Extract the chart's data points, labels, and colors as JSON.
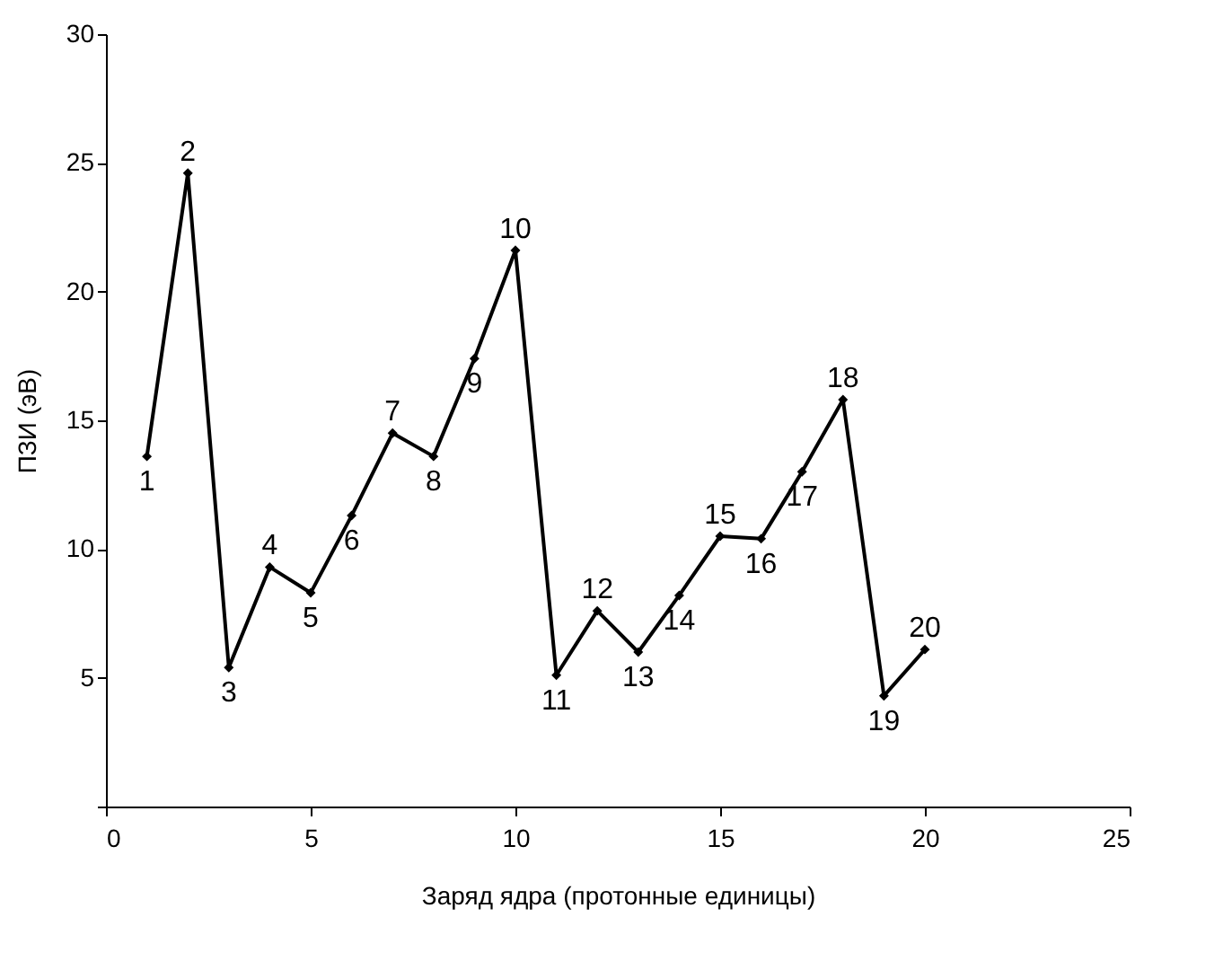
{
  "chart_data": {
    "type": "line",
    "xlabel": "Заряд ядра (протонные единицы)",
    "ylabel": "ПЗИ (эВ)",
    "x": [
      1,
      2,
      3,
      4,
      5,
      6,
      7,
      8,
      9,
      10,
      11,
      12,
      13,
      14,
      15,
      16,
      17,
      18,
      19,
      20
    ],
    "series": [
      {
        "color": "#000000",
        "values": [
          13.6,
          24.6,
          5.4,
          9.3,
          8.3,
          11.3,
          14.5,
          13.6,
          17.4,
          21.6,
          5.1,
          7.6,
          6.0,
          8.2,
          10.5,
          10.4,
          13.0,
          15.8,
          4.3,
          6.1
        ]
      }
    ],
    "xlim": [
      0,
      25
    ],
    "xticks": [
      0,
      5,
      10,
      15,
      20,
      25
    ],
    "ylim": [
      0,
      30
    ],
    "yticks": [
      {
        "value": 0,
        "label": null
      },
      5,
      10,
      15,
      20,
      25,
      30
    ],
    "grid": false,
    "marker": "diamond",
    "line_style": "solid",
    "annotations": [
      {
        "text": "1",
        "x": 1,
        "y": 13.6
      },
      {
        "text": "2",
        "x": 2,
        "y": 24.6
      },
      {
        "text": "3",
        "x": 3,
        "y": 5.4
      },
      {
        "text": "4",
        "x": 4,
        "y": 9.3
      },
      {
        "text": "5",
        "x": 5,
        "y": 8.3
      },
      {
        "text": "6",
        "x": 6,
        "y": 11.3
      },
      {
        "text": "7",
        "x": 7,
        "y": 14.5
      },
      {
        "text": "8",
        "x": 8,
        "y": 13.6
      },
      {
        "text": "9",
        "x": 9,
        "y": 17.4
      },
      {
        "text": "10",
        "x": 10,
        "y": 21.6
      },
      {
        "text": "11",
        "x": 11,
        "y": 5.1
      },
      {
        "text": "12",
        "x": 12,
        "y": 7.6
      },
      {
        "text": "13",
        "x": 13,
        "y": 6.0
      },
      {
        "text": "14",
        "x": 14,
        "y": 8.2
      },
      {
        "text": "15",
        "x": 15,
        "y": 10.5
      },
      {
        "text": "16",
        "x": 16,
        "y": 10.4
      },
      {
        "text": "17",
        "x": 17,
        "y": 13.0
      },
      {
        "text": "18",
        "x": 18,
        "y": 15.8
      },
      {
        "text": "19",
        "x": 19,
        "y": 4.3
      },
      {
        "text": "20",
        "x": 20,
        "y": 6.1
      }
    ]
  }
}
